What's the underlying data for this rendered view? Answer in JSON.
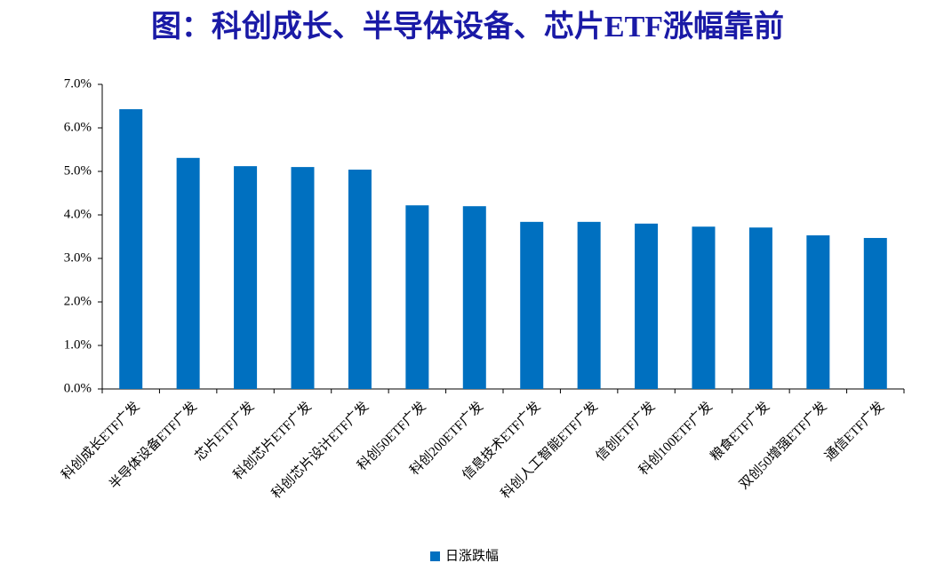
{
  "chart_data": {
    "type": "bar",
    "title": "图：科创成长、半导体设备、芯片ETF涨幅靠前",
    "categories": [
      "科创成长ETF广发",
      "半导体设备ETF广发",
      "芯片ETF广发",
      "科创芯片ETF广发",
      "科创芯片设计ETF广发",
      "科创50ETF广发",
      "科创200ETF广发",
      "信息技术ETF广发",
      "科创人工智能ETF广发",
      "信创ETF广发",
      "科创100ETF广发",
      "粮食ETF广发",
      "双创50增强ETF广发",
      "通信ETF广发"
    ],
    "series": [
      {
        "name": "日涨跌幅",
        "color": "#0070c0",
        "values": [
          6.43,
          5.31,
          5.12,
          5.1,
          5.04,
          4.22,
          4.2,
          3.84,
          3.84,
          3.8,
          3.73,
          3.71,
          3.53,
          3.47
        ]
      }
    ],
    "ylim": [
      0,
      7
    ],
    "yticks": [
      {
        "value": 0,
        "label": "0.0%"
      },
      {
        "value": 1,
        "label": "1.0%"
      },
      {
        "value": 2,
        "label": "2.0%"
      },
      {
        "value": 3,
        "label": "3.0%"
      },
      {
        "value": 4,
        "label": "4.0%"
      },
      {
        "value": 5,
        "label": "5.0%"
      },
      {
        "value": 6,
        "label": "6.0%"
      },
      {
        "value": 7,
        "label": "7.0%"
      }
    ],
    "legend": "bottom"
  }
}
